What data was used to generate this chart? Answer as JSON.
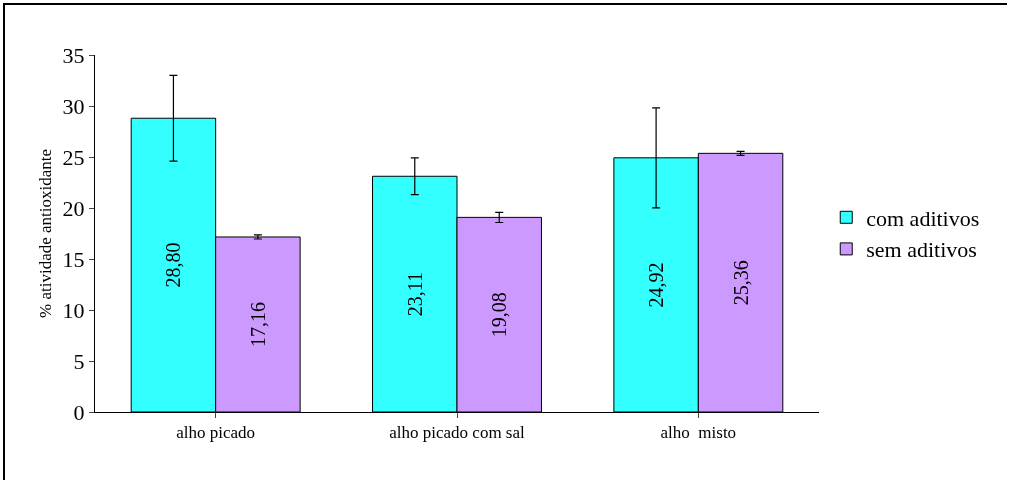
{
  "chart_data": {
    "type": "bar",
    "ylabel": "% atividade antioxidante",
    "categories": [
      "alho picado",
      "alho picado com sal",
      "alho  misto"
    ],
    "series": [
      {
        "name": "com aditivos",
        "color": "#33ffff",
        "values": [
          28.8,
          23.11,
          24.92
        ],
        "errors": [
          4.2,
          1.8,
          4.9
        ],
        "value_labels": [
          "28,80",
          "23,11",
          "24,92"
        ]
      },
      {
        "name": "sem aditivos",
        "color": "#cc99ff",
        "values": [
          17.16,
          19.08,
          25.36
        ],
        "errors": [
          0.2,
          0.5,
          0.2
        ],
        "value_labels": [
          "17,16",
          "19,08",
          "25,36"
        ]
      }
    ],
    "ylim": [
      0,
      35
    ],
    "yticks": [
      0,
      5,
      10,
      15,
      20,
      25,
      30,
      35
    ],
    "grid": false,
    "legend": "right"
  }
}
